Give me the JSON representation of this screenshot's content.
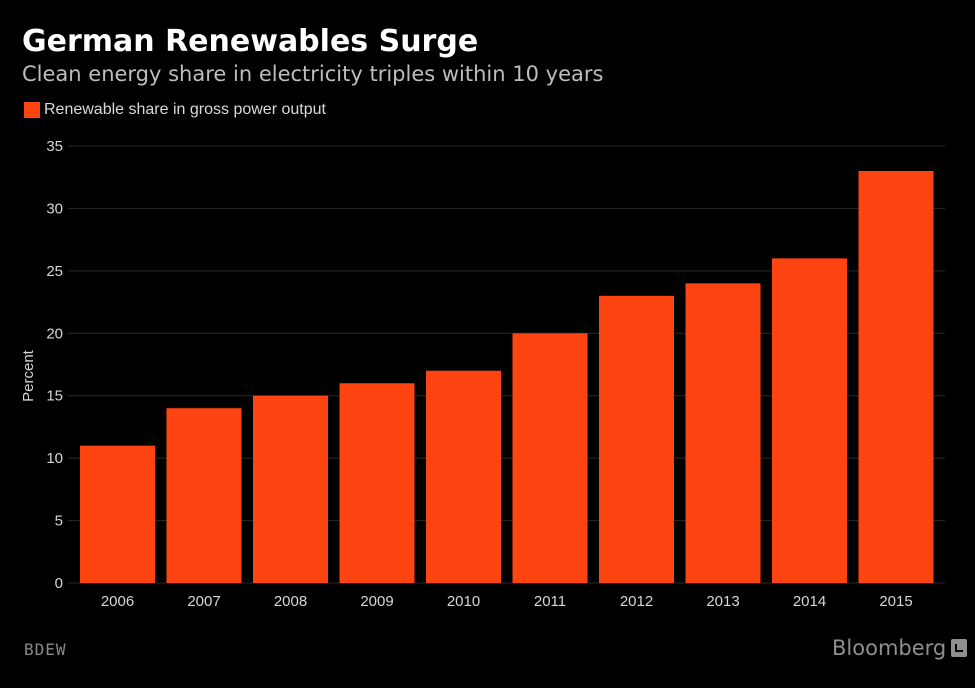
{
  "title": "German Renewables Surge",
  "subtitle": "Clean energy share in electricity triples within 10 years",
  "legend": {
    "label": "Renewable share in gross power output",
    "color": "#fe4410"
  },
  "source": "BDEW",
  "brand": {
    "name": "Bloomberg",
    "icon": "bloomberg-logo-icon"
  },
  "colors": {
    "background": "#000000",
    "bar": "#fe4410",
    "grid": "#2a2a2a"
  },
  "chart_data": {
    "type": "bar",
    "categories": [
      "2006",
      "2007",
      "2008",
      "2009",
      "2010",
      "2011",
      "2012",
      "2013",
      "2014",
      "2015"
    ],
    "series": [
      {
        "name": "Renewable share in gross power output",
        "values": [
          11,
          14,
          15,
          16,
          17,
          20,
          23,
          24,
          26,
          33
        ]
      }
    ],
    "title": "German Renewables Surge",
    "subtitle": "Clean energy share in electricity triples within 10 years",
    "xlabel": "",
    "ylabel": "Percent",
    "ylim": [
      0,
      35
    ],
    "yticks": [
      0,
      5,
      10,
      15,
      20,
      25,
      30,
      35
    ],
    "grid": true,
    "legend_position": "top-left"
  }
}
